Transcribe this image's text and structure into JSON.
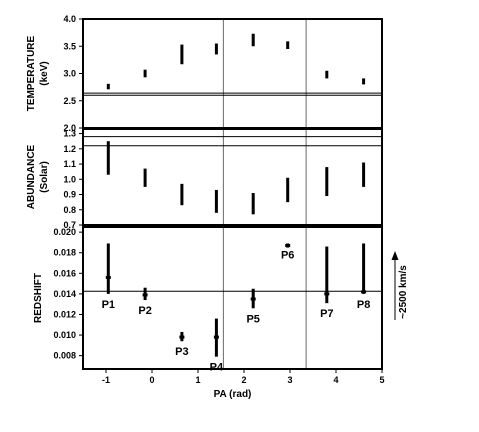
{
  "chart_data": {
    "type": "scatter",
    "xlabel": "PA (rad)",
    "xlim": [
      -1.5,
      5
    ],
    "xticks": [
      "-1",
      "0",
      "1",
      "2",
      "3",
      "4",
      "5"
    ],
    "vlines": [
      1.55,
      3.35
    ],
    "panels": [
      {
        "id": "temperature",
        "ylabel": "TEMPERATURE",
        "ylabel_unit": "(keV)",
        "ylim": [
          2.0,
          4.0
        ],
        "yticks": [
          "2.0",
          "2.5",
          "3.0",
          "3.5",
          "4.0"
        ],
        "hlines": [
          2.6,
          2.64
        ],
        "points": [
          {
            "x": -0.95,
            "y": 2.76,
            "lo": 2.71,
            "hi": 2.81
          },
          {
            "x": -0.15,
            "y": 3.0,
            "lo": 2.93,
            "hi": 3.07
          },
          {
            "x": 0.65,
            "y": 3.35,
            "lo": 3.17,
            "hi": 3.53
          },
          {
            "x": 1.4,
            "y": 3.45,
            "lo": 3.35,
            "hi": 3.55
          },
          {
            "x": 2.2,
            "y": 3.62,
            "lo": 3.5,
            "hi": 3.73
          },
          {
            "x": 2.95,
            "y": 3.52,
            "lo": 3.45,
            "hi": 3.59
          },
          {
            "x": 3.8,
            "y": 2.98,
            "lo": 2.91,
            "hi": 3.05
          },
          {
            "x": 4.6,
            "y": 2.86,
            "lo": 2.8,
            "hi": 2.91
          }
        ]
      },
      {
        "id": "abundance",
        "ylabel": "ABUNDANCE",
        "ylabel_unit": "(Solar)",
        "ylim": [
          0.7,
          1.33
        ],
        "yticks": [
          "0.7",
          "0.8",
          "0.9",
          "1.0",
          "1.1",
          "1.2",
          "1.3"
        ],
        "hlines": [
          1.22,
          1.28
        ],
        "points": [
          {
            "x": -0.95,
            "y": 1.14,
            "lo": 1.03,
            "hi": 1.25
          },
          {
            "x": -0.15,
            "y": 1.01,
            "lo": 0.95,
            "hi": 1.07
          },
          {
            "x": 0.65,
            "y": 0.9,
            "lo": 0.83,
            "hi": 0.97
          },
          {
            "x": 1.4,
            "y": 0.85,
            "lo": 0.78,
            "hi": 0.93
          },
          {
            "x": 2.2,
            "y": 0.84,
            "lo": 0.77,
            "hi": 0.91
          },
          {
            "x": 2.95,
            "y": 0.93,
            "lo": 0.85,
            "hi": 1.01
          },
          {
            "x": 3.8,
            "y": 0.98,
            "lo": 0.89,
            "hi": 1.08
          },
          {
            "x": 4.6,
            "y": 1.03,
            "lo": 0.95,
            "hi": 1.11
          }
        ]
      },
      {
        "id": "redshift",
        "ylabel": "REDSHIFT",
        "ylabel_unit": "",
        "ylim": [
          0.0067,
          0.0205
        ],
        "yticks": [
          "0.008",
          "0.010",
          "0.012",
          "0.014",
          "0.016",
          "0.018",
          "0.020"
        ],
        "hlines": [
          0.01425
        ],
        "points": [
          {
            "label": "P1",
            "x": -0.95,
            "y": 0.0156,
            "lo": 0.014,
            "hi": 0.0189
          },
          {
            "label": "P2",
            "x": -0.15,
            "y": 0.0139,
            "lo": 0.0134,
            "hi": 0.0146
          },
          {
            "label": "P3",
            "x": 0.65,
            "y": 0.0098,
            "lo": 0.0094,
            "hi": 0.0103
          },
          {
            "label": "P4",
            "x": 1.4,
            "y": 0.0098,
            "lo": 0.0079,
            "hi": 0.0116
          },
          {
            "label": "P5",
            "x": 2.2,
            "y": 0.0135,
            "lo": 0.0126,
            "hi": 0.0145
          },
          {
            "label": "P6",
            "x": 2.95,
            "y": 0.0187,
            "lo": 0.0185,
            "hi": 0.0189
          },
          {
            "label": "P7",
            "x": 3.8,
            "y": 0.014,
            "lo": 0.0131,
            "hi": 0.0186
          },
          {
            "label": "P8",
            "x": 4.6,
            "y": 0.0142,
            "lo": 0.014,
            "hi": 0.0189
          }
        ]
      }
    ],
    "annotation": "~2500 km/s"
  }
}
